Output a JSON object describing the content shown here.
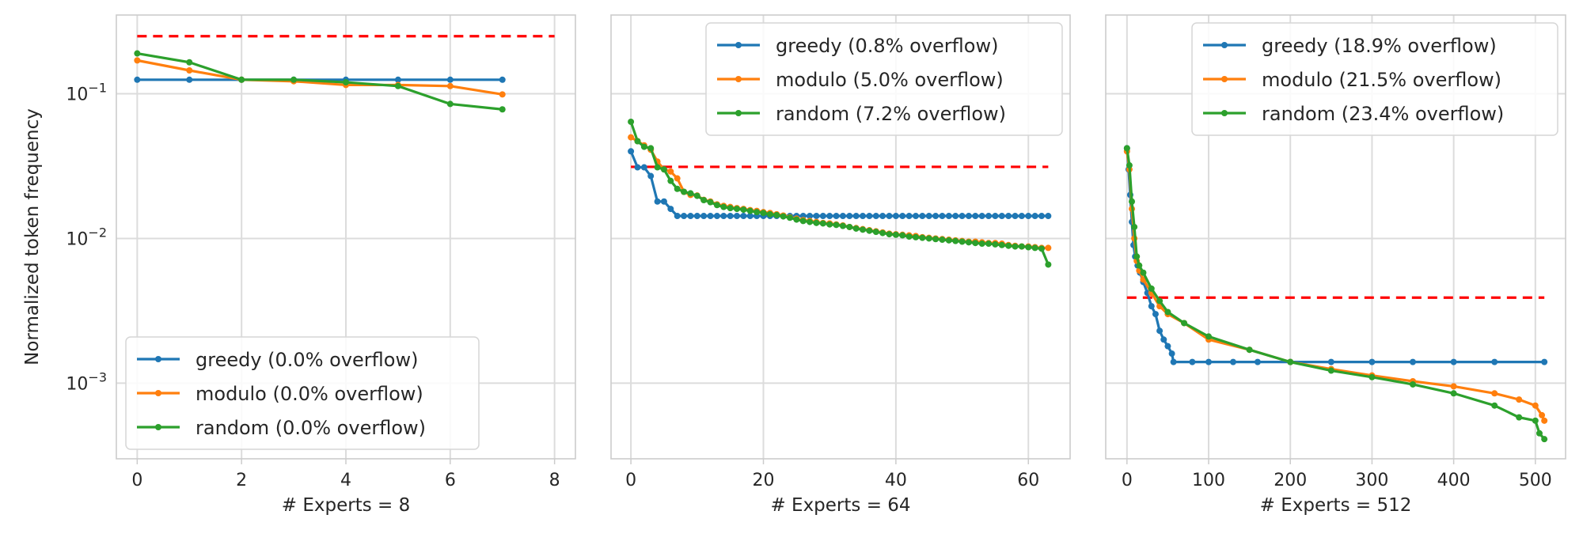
{
  "colors": {
    "greedy": "#1f77b4",
    "modulo": "#ff7f0e",
    "random": "#2ca02c",
    "capacity": "#ff0000",
    "grid": "#dcdcdc"
  },
  "ylabel": "Normalized token frequency",
  "yscale": "log",
  "ylim": [
    0.0003,
    0.35
  ],
  "yticks": [
    {
      "v": 0.1,
      "base": "10",
      "exp": "−1"
    },
    {
      "v": 0.01,
      "base": "10",
      "exp": "−2"
    },
    {
      "v": 0.001,
      "base": "10",
      "exp": "−3"
    }
  ],
  "chart_data": [
    {
      "type": "line",
      "xlabel": "# Experts = 8",
      "xlim": [
        -0.4,
        8.4
      ],
      "xticks": [
        0,
        2,
        4,
        6,
        8
      ],
      "grid": true,
      "legend": "bottom-left",
      "capacity_line": 0.25,
      "series": [
        {
          "name": "greedy (0.0% overflow)",
          "key": "greedy",
          "x": [
            0,
            1,
            2,
            3,
            4,
            5,
            6,
            7
          ],
          "y": [
            0.125,
            0.125,
            0.125,
            0.125,
            0.125,
            0.125,
            0.125,
            0.125
          ]
        },
        {
          "name": "modulo (0.0% overflow)",
          "key": "modulo",
          "x": [
            0,
            1,
            2,
            3,
            4,
            5,
            6,
            7
          ],
          "y": [
            0.17,
            0.145,
            0.125,
            0.122,
            0.115,
            0.115,
            0.113,
            0.099
          ]
        },
        {
          "name": "random (0.0% overflow)",
          "key": "random",
          "x": [
            0,
            1,
            2,
            3,
            4,
            5,
            6,
            7
          ],
          "y": [
            0.19,
            0.165,
            0.125,
            0.125,
            0.12,
            0.113,
            0.085,
            0.078
          ]
        }
      ]
    },
    {
      "type": "line",
      "xlabel": "# Experts = 64",
      "xlim": [
        -3,
        66.3
      ],
      "xticks": [
        0,
        20,
        40,
        60
      ],
      "grid": true,
      "legend": "top-right",
      "capacity_line": 0.03125,
      "series": [
        {
          "name": "greedy (0.8% overflow)",
          "key": "greedy",
          "x": [
            0,
            1,
            2,
            3,
            4,
            5,
            6,
            7,
            8,
            9,
            10,
            11,
            12,
            13,
            14,
            15,
            16,
            17,
            18,
            19,
            20,
            21,
            22,
            23,
            24,
            25,
            26,
            27,
            28,
            29,
            30,
            31,
            32,
            33,
            34,
            35,
            36,
            37,
            38,
            39,
            40,
            41,
            42,
            43,
            44,
            45,
            46,
            47,
            48,
            49,
            50,
            51,
            52,
            53,
            54,
            55,
            56,
            57,
            58,
            59,
            60,
            61,
            62,
            63
          ],
          "y": [
            0.04,
            0.031,
            0.031,
            0.027,
            0.018,
            0.018,
            0.016,
            0.0143,
            0.0143,
            0.0143,
            0.0143,
            0.0143,
            0.0143,
            0.0143,
            0.0143,
            0.0143,
            0.0143,
            0.0143,
            0.0143,
            0.0143,
            0.0143,
            0.0143,
            0.0143,
            0.0143,
            0.0143,
            0.0143,
            0.0143,
            0.0143,
            0.0143,
            0.0143,
            0.0143,
            0.0143,
            0.0143,
            0.0143,
            0.0143,
            0.0143,
            0.0143,
            0.0143,
            0.0143,
            0.0143,
            0.0143,
            0.0143,
            0.0143,
            0.0143,
            0.0143,
            0.0143,
            0.0143,
            0.0143,
            0.0143,
            0.0143,
            0.0143,
            0.0143,
            0.0143,
            0.0143,
            0.0143,
            0.0143,
            0.0143,
            0.0143,
            0.0143,
            0.0143,
            0.0143,
            0.0143,
            0.0143,
            0.0143
          ]
        },
        {
          "name": "modulo (5.0% overflow)",
          "key": "modulo",
          "x": [
            0,
            1,
            2,
            3,
            4,
            5,
            6,
            7,
            8,
            9,
            10,
            11,
            12,
            13,
            14,
            15,
            16,
            17,
            18,
            19,
            20,
            21,
            22,
            23,
            24,
            25,
            26,
            27,
            28,
            29,
            30,
            31,
            32,
            33,
            34,
            35,
            36,
            37,
            38,
            39,
            40,
            41,
            42,
            43,
            44,
            45,
            46,
            47,
            48,
            49,
            50,
            51,
            52,
            53,
            54,
            55,
            56,
            57,
            58,
            59,
            60,
            61,
            62,
            63
          ],
          "y": [
            0.05,
            0.047,
            0.044,
            0.041,
            0.034,
            0.03,
            0.029,
            0.026,
            0.021,
            0.02,
            0.0198,
            0.0185,
            0.018,
            0.0172,
            0.0168,
            0.0165,
            0.0162,
            0.016,
            0.0157,
            0.0155,
            0.0152,
            0.015,
            0.0147,
            0.0144,
            0.014,
            0.0137,
            0.0134,
            0.0132,
            0.013,
            0.0128,
            0.0127,
            0.0125,
            0.0123,
            0.012,
            0.0118,
            0.0116,
            0.0114,
            0.0112,
            0.011,
            0.0108,
            0.0107,
            0.0106,
            0.0105,
            0.0104,
            0.0102,
            0.0101,
            0.01,
            0.0099,
            0.0098,
            0.0097,
            0.0096,
            0.0095,
            0.0095,
            0.0094,
            0.0093,
            0.0093,
            0.0092,
            0.009,
            0.0089,
            0.0088,
            0.0088,
            0.0087,
            0.0086,
            0.0086
          ]
        },
        {
          "name": "random (7.2% overflow)",
          "key": "random",
          "x": [
            0,
            1,
            2,
            3,
            4,
            5,
            6,
            7,
            8,
            9,
            10,
            11,
            12,
            13,
            14,
            15,
            16,
            17,
            18,
            19,
            20,
            21,
            22,
            23,
            24,
            25,
            26,
            27,
            28,
            29,
            30,
            31,
            32,
            33,
            34,
            35,
            36,
            37,
            38,
            39,
            40,
            41,
            42,
            43,
            44,
            45,
            46,
            47,
            48,
            49,
            50,
            51,
            52,
            53,
            54,
            55,
            56,
            57,
            58,
            59,
            60,
            61,
            62,
            63
          ],
          "y": [
            0.064,
            0.047,
            0.043,
            0.042,
            0.031,
            0.03,
            0.025,
            0.022,
            0.021,
            0.0205,
            0.0197,
            0.0184,
            0.0178,
            0.017,
            0.0165,
            0.0162,
            0.016,
            0.0158,
            0.0155,
            0.0152,
            0.015,
            0.0147,
            0.0145,
            0.0142,
            0.0139,
            0.0135,
            0.0132,
            0.013,
            0.0128,
            0.0127,
            0.0125,
            0.0124,
            0.0122,
            0.012,
            0.0117,
            0.0115,
            0.0113,
            0.0111,
            0.0109,
            0.0107,
            0.0106,
            0.0105,
            0.0103,
            0.0102,
            0.0101,
            0.01,
            0.0099,
            0.0098,
            0.0097,
            0.0096,
            0.0095,
            0.0094,
            0.0093,
            0.0092,
            0.0092,
            0.0091,
            0.009,
            0.0089,
            0.0088,
            0.0088,
            0.0087,
            0.0086,
            0.0085,
            0.0066
          ]
        }
      ]
    },
    {
      "type": "line",
      "xlabel": "# Experts = 512",
      "xlim": [
        -26,
        537
      ],
      "xticks": [
        0,
        100,
        200,
        300,
        400,
        500
      ],
      "grid": true,
      "legend": "top-right",
      "capacity_line": 0.0039,
      "series": [
        {
          "name": "greedy (18.9% overflow)",
          "key": "greedy",
          "x": [
            0,
            2,
            4,
            6,
            8,
            10,
            13,
            16,
            20,
            25,
            30,
            35,
            40,
            45,
            50,
            55,
            57,
            80,
            100,
            130,
            160,
            200,
            250,
            300,
            350,
            400,
            450,
            511
          ],
          "y": [
            0.042,
            0.03,
            0.02,
            0.013,
            0.009,
            0.0075,
            0.0065,
            0.0058,
            0.005,
            0.0042,
            0.0034,
            0.003,
            0.0023,
            0.002,
            0.0018,
            0.0016,
            0.0014,
            0.0014,
            0.0014,
            0.0014,
            0.0014,
            0.0014,
            0.0014,
            0.0014,
            0.0014,
            0.0014,
            0.0014,
            0.0014
          ]
        },
        {
          "name": "modulo (21.5% overflow)",
          "key": "modulo",
          "x": [
            0,
            3,
            6,
            9,
            12,
            15,
            20,
            30,
            40,
            50,
            70,
            100,
            150,
            200,
            250,
            300,
            350,
            400,
            450,
            480,
            500,
            508,
            511
          ],
          "y": [
            0.04,
            0.03,
            0.016,
            0.01,
            0.007,
            0.006,
            0.0052,
            0.0042,
            0.0034,
            0.003,
            0.0026,
            0.002,
            0.0017,
            0.0014,
            0.00125,
            0.00113,
            0.00103,
            0.00095,
            0.00085,
            0.00077,
            0.0007,
            0.0006,
            0.00055
          ]
        },
        {
          "name": "random (23.4% overflow)",
          "key": "random",
          "x": [
            0,
            3,
            6,
            9,
            12,
            15,
            20,
            30,
            40,
            50,
            70,
            100,
            150,
            200,
            250,
            300,
            350,
            400,
            450,
            480,
            500,
            505,
            511
          ],
          "y": [
            0.042,
            0.032,
            0.018,
            0.012,
            0.0075,
            0.0065,
            0.0058,
            0.0045,
            0.0037,
            0.0031,
            0.0026,
            0.0021,
            0.0017,
            0.0014,
            0.00122,
            0.0011,
            0.00098,
            0.00085,
            0.0007,
            0.00058,
            0.00055,
            0.00045,
            0.00041
          ]
        }
      ]
    }
  ]
}
